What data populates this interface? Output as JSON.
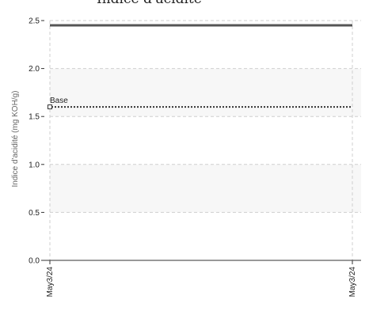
{
  "colors": {
    "background": "#ffffff",
    "band": "#f7f7f7",
    "grid": "#cfcfcf",
    "axis": "#333333",
    "text": "#222222",
    "series": "#555555",
    "base_line": "#333333"
  },
  "chart_data": {
    "type": "line",
    "title": "Indice d'acidité",
    "ylabel": "Indice d'acidité (mg KOH/g)",
    "xlabel": "",
    "ylim": [
      0,
      2.5
    ],
    "yticks": [
      "0.0",
      "0.5",
      "1.0",
      "1.5",
      "2.0",
      "2.5"
    ],
    "ytick_values": [
      0,
      0.5,
      1.0,
      1.5,
      2.0,
      2.5
    ],
    "x": [
      "May3/24",
      "May3/24"
    ],
    "series": [
      {
        "values": [
          2.45,
          2.45
        ],
        "style": "solid"
      }
    ],
    "reference_lines": [
      {
        "label": "Base",
        "value": 1.6,
        "style": "dotted"
      }
    ],
    "grid": true,
    "shaded_bands": [
      [
        0.5,
        1.0
      ],
      [
        1.5,
        2.0
      ]
    ]
  }
}
